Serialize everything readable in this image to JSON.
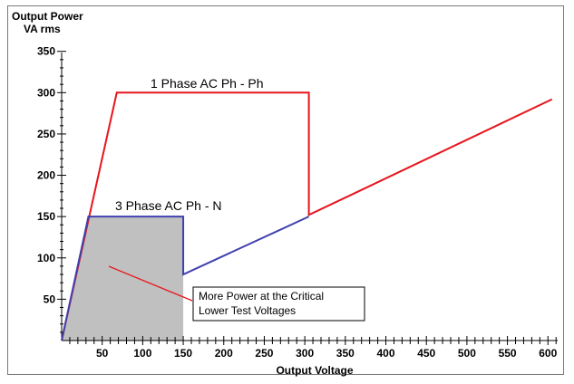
{
  "chart_data": {
    "type": "line",
    "ylabel_line1": "Output Power",
    "ylabel_line2": "VA rms",
    "xlabel": "Output Voltage",
    "xlim": [
      0,
      612
    ],
    "ylim": [
      0,
      365
    ],
    "x_ticks": [
      50,
      100,
      150,
      200,
      250,
      300,
      350,
      400,
      450,
      500,
      550,
      600
    ],
    "y_ticks": [
      50,
      100,
      150,
      200,
      250,
      300,
      350
    ],
    "series": [
      {
        "name": "1 Phase AC Ph - Ph",
        "color": "#e8141c",
        "points": [
          [
            0,
            0
          ],
          [
            68,
            300
          ],
          [
            305,
            300
          ],
          [
            305,
            152
          ],
          [
            605,
            292
          ]
        ]
      },
      {
        "name": "3 Phase AC Ph - N",
        "color": "#4040b0",
        "points": [
          [
            0,
            0
          ],
          [
            33,
            150
          ],
          [
            150,
            150
          ],
          [
            150,
            80
          ],
          [
            305,
            150
          ]
        ]
      }
    ],
    "shaded_region": {
      "color": "#c0c0c0",
      "points": [
        [
          0,
          0
        ],
        [
          33,
          150
        ],
        [
          150,
          150
        ],
        [
          150,
          0
        ]
      ]
    },
    "callout": {
      "line1": "More Power at the Critical",
      "line2": "Lower Test Voltages",
      "pointer_color": "#e8141c"
    }
  }
}
